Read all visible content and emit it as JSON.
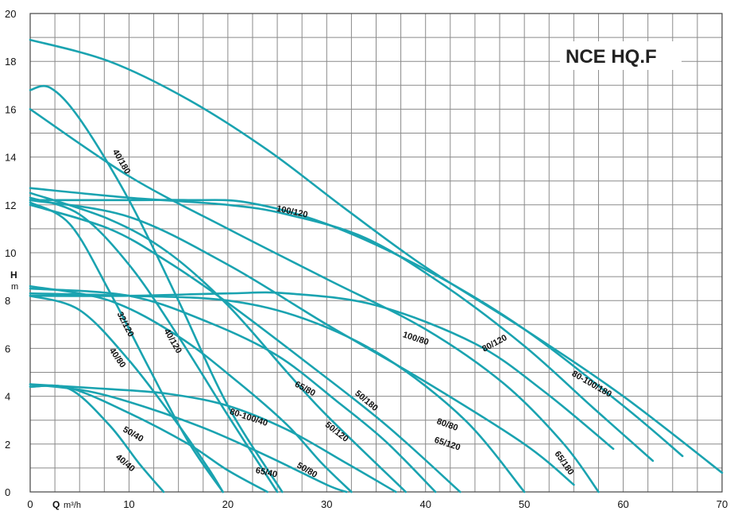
{
  "chart_data": {
    "type": "line",
    "title": "NCE HQ.F",
    "xlabel": "Q",
    "xunit": "m³/h",
    "ylabel": "H",
    "yunit": "m",
    "xlim": [
      0,
      70
    ],
    "ylim": [
      0,
      20
    ],
    "xticks": [
      0,
      10,
      20,
      30,
      40,
      50,
      60,
      70
    ],
    "yticks": [
      0,
      2,
      4,
      6,
      8,
      10,
      12,
      14,
      16,
      18,
      20
    ],
    "grid": true,
    "line_color": "#1aa3b0",
    "series": [
      {
        "name": "40/40",
        "x": [
          0,
          4,
          8,
          11,
          13.5
        ],
        "y": [
          4.4,
          4.3,
          2.8,
          1.2,
          0
        ]
      },
      {
        "name": "50/40",
        "x": [
          0,
          4,
          10,
          16,
          20,
          24
        ],
        "y": [
          4.4,
          4.35,
          3.3,
          2.0,
          0.9,
          0
        ]
      },
      {
        "name": "65/40",
        "x": [
          0,
          6,
          12,
          18,
          24,
          30,
          32
        ],
        "y": [
          4.5,
          4.2,
          3.5,
          2.6,
          1.5,
          0.3,
          0
        ]
      },
      {
        "name": "80-100/40",
        "x": [
          0,
          8,
          14,
          20,
          26,
          32,
          37
        ],
        "y": [
          4.5,
          4.3,
          4.1,
          3.6,
          2.6,
          1.2,
          0
        ]
      },
      {
        "name": "40/80",
        "x": [
          0,
          5,
          10,
          15,
          18,
          19.5
        ],
        "y": [
          8.2,
          7.6,
          5.5,
          2.8,
          1.0,
          0
        ]
      },
      {
        "name": "32/120",
        "x": [
          0,
          4,
          8,
          12,
          16,
          19.5
        ],
        "y": [
          12.1,
          11.2,
          8.4,
          5.2,
          2.1,
          0
        ]
      },
      {
        "name": "50/80",
        "x": [
          0,
          8,
          15,
          21,
          26,
          29.5,
          32.5
        ],
        "y": [
          8.6,
          8.0,
          6.5,
          4.6,
          2.8,
          1.2,
          0
        ]
      },
      {
        "name": "40/120",
        "x": [
          0,
          5,
          10,
          15,
          20,
          25
        ],
        "y": [
          12.3,
          11.6,
          9.5,
          6.5,
          3.2,
          0
        ]
      },
      {
        "name": "65/80",
        "x": [
          0,
          10,
          18,
          25,
          31,
          36,
          41
        ],
        "y": [
          8.5,
          8.2,
          7.1,
          5.7,
          3.8,
          2.1,
          0
        ]
      },
      {
        "name": "50/120",
        "x": [
          0,
          8,
          14,
          20,
          26,
          30,
          38
        ],
        "y": [
          12.5,
          11.4,
          10.0,
          7.8,
          5.0,
          3.2,
          0
        ]
      },
      {
        "name": "50/180",
        "x": [
          0,
          8,
          14,
          20,
          28,
          36,
          43.5
        ],
        "y": [
          12.0,
          11.0,
          9.6,
          7.9,
          5.4,
          2.8,
          0
        ]
      },
      {
        "name": "80/80",
        "x": [
          0,
          10,
          20,
          28,
          36,
          44,
          50
        ],
        "y": [
          8.3,
          8.2,
          8.0,
          7.2,
          5.6,
          3.0,
          0
        ]
      },
      {
        "name": "65/120",
        "x": [
          0,
          10,
          20,
          30,
          40,
          50,
          55
        ],
        "y": [
          12.2,
          11.5,
          9.5,
          7.0,
          4.6,
          2.0,
          0.3
        ]
      },
      {
        "name": "40/180",
        "x": [
          0,
          2,
          5,
          10,
          15,
          20,
          25.5
        ],
        "y": [
          16.8,
          16.9,
          15.6,
          12.2,
          8.0,
          3.6,
          0
        ]
      },
      {
        "name": "100/80",
        "x": [
          0,
          10,
          20,
          26,
          35,
          45,
          52,
          59
        ],
        "y": [
          8.2,
          8.2,
          8.3,
          8.3,
          7.8,
          6.2,
          4.2,
          1.8
        ]
      },
      {
        "name": "65/180",
        "x": [
          0,
          10,
          20,
          30,
          40,
          48,
          54,
          57.5
        ],
        "y": [
          16.0,
          13.2,
          11.0,
          8.9,
          6.8,
          4.5,
          2.0,
          0
        ]
      },
      {
        "name": "100/120",
        "x": [
          0,
          10,
          16,
          22,
          30,
          40,
          50,
          60,
          66
        ],
        "y": [
          12.2,
          12.2,
          12.2,
          12.1,
          11.2,
          9.3,
          6.8,
          3.6,
          1.5
        ]
      },
      {
        "name": "80/120",
        "x": [
          0,
          10,
          20,
          26,
          34,
          42,
          50,
          57,
          63
        ],
        "y": [
          12.7,
          12.3,
          12.0,
          11.6,
          10.6,
          8.6,
          6.1,
          3.5,
          1.3
        ]
      },
      {
        "name": "80-100/180",
        "x": [
          0,
          8,
          16,
          24,
          32,
          40,
          50,
          60,
          70
        ],
        "y": [
          18.9,
          18.0,
          16.4,
          14.3,
          11.8,
          9.4,
          6.8,
          4.0,
          0.8
        ]
      }
    ],
    "labels": [
      {
        "text": "40/180",
        "x": 9.2,
        "y": 13.8,
        "angle": 60
      },
      {
        "text": "100/120",
        "x": 26.5,
        "y": 11.7,
        "angle": 12
      },
      {
        "text": "32/120",
        "x": 9.6,
        "y": 7.0,
        "angle": 63
      },
      {
        "text": "40/120",
        "x": 14.4,
        "y": 6.3,
        "angle": 60
      },
      {
        "text": "40/80",
        "x": 8.8,
        "y": 5.6,
        "angle": 55
      },
      {
        "text": "100/80",
        "x": 39.0,
        "y": 6.4,
        "angle": 18
      },
      {
        "text": "80/120",
        "x": 47.0,
        "y": 6.2,
        "angle": -28
      },
      {
        "text": "80-100/180",
        "x": 56.8,
        "y": 4.5,
        "angle": 30
      },
      {
        "text": "65/80",
        "x": 27.8,
        "y": 4.3,
        "angle": 28
      },
      {
        "text": "50/180",
        "x": 34.0,
        "y": 3.8,
        "angle": 40
      },
      {
        "text": "80-100/40",
        "x": 22.1,
        "y": 3.1,
        "angle": 18
      },
      {
        "text": "50/120",
        "x": 31.0,
        "y": 2.5,
        "angle": 38
      },
      {
        "text": "80/80",
        "x": 42.2,
        "y": 2.8,
        "angle": 20
      },
      {
        "text": "65/120",
        "x": 42.2,
        "y": 2.0,
        "angle": 18
      },
      {
        "text": "65/180",
        "x": 54.0,
        "y": 1.2,
        "angle": 55
      },
      {
        "text": "50/40",
        "x": 10.4,
        "y": 2.4,
        "angle": 30
      },
      {
        "text": "40/40",
        "x": 9.6,
        "y": 1.2,
        "angle": 40
      },
      {
        "text": "65/40",
        "x": 23.9,
        "y": 0.8,
        "angle": 12
      },
      {
        "text": "50/80",
        "x": 28.0,
        "y": 0.9,
        "angle": 30
      }
    ]
  }
}
